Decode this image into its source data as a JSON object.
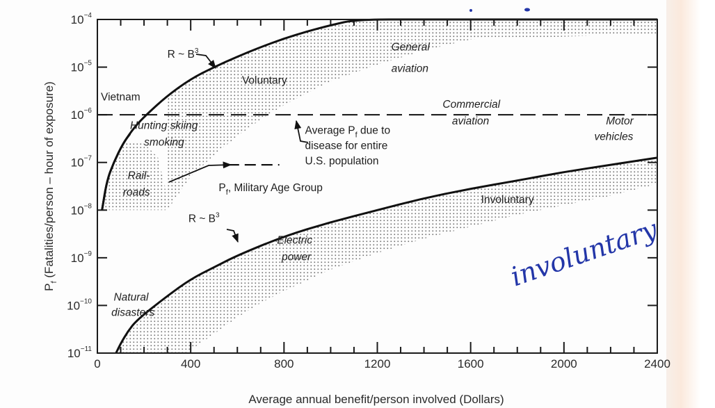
{
  "chart_data": {
    "type": "area",
    "title": "",
    "xlabel": "Average annual benefit/person involved (Dollars)",
    "ylabel": "P_f (Fatalities/person – hour of exposure)",
    "ylabel_parts": {
      "main": "P",
      "sub": "f",
      "rest": " (Fatalities/person – hour of exposure)"
    },
    "xlim": [
      0,
      2400
    ],
    "ylim_log10": [
      -11,
      -4
    ],
    "yscale": "log",
    "grid": false,
    "x_ticks": [
      {
        "value": 0,
        "label": "0"
      },
      {
        "value": 400,
        "label": "400"
      },
      {
        "value": 800,
        "label": "800"
      },
      {
        "value": 1200,
        "label": "1200"
      },
      {
        "value": 1600,
        "label": "1600"
      },
      {
        "value": 2000,
        "label": "2000"
      },
      {
        "value": 2400,
        "label": "2400"
      }
    ],
    "x_minor_step": 100,
    "y_ticks": [
      {
        "exp": -4,
        "base": "10",
        "sup": "−4"
      },
      {
        "exp": -5,
        "base": "10",
        "sup": "−5"
      },
      {
        "exp": -6,
        "base": "10",
        "sup": "−6"
      },
      {
        "exp": -7,
        "base": "10",
        "sup": "−7"
      },
      {
        "exp": -8,
        "base": "10",
        "sup": "−8"
      },
      {
        "exp": -9,
        "base": "10",
        "sup": "−9"
      },
      {
        "exp": -10,
        "base": "10",
        "sup": "−10"
      },
      {
        "exp": -11,
        "base": "10",
        "sup": "−11"
      }
    ],
    "series": [
      {
        "name": "Voluntary risk boundary (R ~ B³)",
        "style": "solid",
        "points": [
          [
            20,
            -8.0
          ],
          [
            40,
            -7.4
          ],
          [
            70,
            -7.0
          ],
          [
            110,
            -6.6
          ],
          [
            160,
            -6.25
          ],
          [
            210,
            -6.0
          ],
          [
            300,
            -5.6
          ],
          [
            400,
            -5.25
          ],
          [
            500,
            -5.0
          ],
          [
            600,
            -4.78
          ],
          [
            700,
            -4.58
          ],
          [
            800,
            -4.4
          ],
          [
            900,
            -4.25
          ],
          [
            1000,
            -4.12
          ],
          [
            1110,
            -4.0
          ],
          [
            1400,
            -3.95
          ],
          [
            1800,
            -3.93
          ],
          [
            2400,
            -3.92
          ]
        ]
      },
      {
        "name": "Voluntary band lower edge",
        "style": "shade-edge",
        "points": [
          [
            300,
            -8.0
          ],
          [
            400,
            -7.3
          ],
          [
            500,
            -6.85
          ],
          [
            600,
            -6.45
          ],
          [
            700,
            -6.1
          ],
          [
            800,
            -5.8
          ],
          [
            900,
            -5.55
          ],
          [
            1000,
            -5.3
          ],
          [
            1200,
            -4.95
          ],
          [
            1400,
            -4.65
          ],
          [
            1600,
            -4.42
          ],
          [
            1800,
            -4.25
          ],
          [
            2000,
            -4.15
          ],
          [
            2400,
            -4.05
          ]
        ]
      },
      {
        "name": "Involuntary risk boundary (R ~ B³)",
        "style": "solid",
        "points": [
          [
            80,
            -11.0
          ],
          [
            100,
            -10.8
          ],
          [
            130,
            -10.55
          ],
          [
            170,
            -10.3
          ],
          [
            300,
            -9.8
          ],
          [
            400,
            -9.45
          ],
          [
            500,
            -9.2
          ],
          [
            600,
            -8.95
          ],
          [
            800,
            -8.55
          ],
          [
            1000,
            -8.25
          ],
          [
            1200,
            -8.0
          ],
          [
            1400,
            -7.75
          ],
          [
            1600,
            -7.55
          ],
          [
            1800,
            -7.38
          ],
          [
            2000,
            -7.2
          ],
          [
            2200,
            -7.05
          ],
          [
            2400,
            -6.9
          ]
        ]
      },
      {
        "name": "Involuntary band lower edge",
        "style": "shade-edge",
        "points": [
          [
            380,
            -11.0
          ],
          [
            500,
            -10.6
          ],
          [
            600,
            -10.25
          ],
          [
            700,
            -9.95
          ],
          [
            800,
            -9.7
          ],
          [
            1000,
            -9.25
          ],
          [
            1200,
            -8.9
          ],
          [
            1400,
            -8.6
          ],
          [
            1600,
            -8.35
          ],
          [
            1800,
            -8.1
          ],
          [
            2000,
            -7.9
          ],
          [
            2200,
            -7.7
          ],
          [
            2400,
            -7.45
          ]
        ]
      },
      {
        "name": "Average P_f due to disease for entire U.S. population",
        "style": "dashed",
        "points": [
          [
            0,
            -6.0
          ],
          [
            2400,
            -6.0
          ]
        ]
      },
      {
        "name": "P_f, Military Age Group",
        "style": "dashed-short",
        "points": [
          [
            560,
            -7.05
          ],
          [
            780,
            -7.05
          ]
        ]
      }
    ],
    "left_shaded_blob": {
      "name": "Voluntary low-benefit region (Rail-roads)",
      "points": [
        [
          20,
          -8.0
        ],
        [
          300,
          -8.0
        ],
        [
          290,
          -7.5
        ],
        [
          260,
          -6.9
        ],
        [
          200,
          -6.6
        ],
        [
          110,
          -6.6
        ],
        [
          70,
          -7.0
        ],
        [
          40,
          -7.4
        ]
      ]
    },
    "annotations": [
      {
        "id": "r-b3-upper",
        "text": "R ~ B",
        "sup": "3",
        "italic": false,
        "x": 300,
        "y": -4.8,
        "arrow_to": [
          520,
          -5.0
        ]
      },
      {
        "id": "vietnam",
        "text": "Vietnam",
        "italic": false,
        "x": 15,
        "y": -5.7
      },
      {
        "id": "voluntary",
        "text": "Voluntary",
        "italic": false,
        "x": 620,
        "y": -5.35
      },
      {
        "id": "general-aviation-1",
        "text": "General",
        "italic": true,
        "x": 1260,
        "y": -4.65
      },
      {
        "id": "general-aviation-2",
        "text": "aviation",
        "italic": true,
        "x": 1260,
        "y": -5.1
      },
      {
        "id": "hunting",
        "text": "Hunting skiing",
        "italic": true,
        "x": 140,
        "y": -6.3
      },
      {
        "id": "smoking",
        "text": "smoking",
        "italic": true,
        "x": 200,
        "y": -6.65
      },
      {
        "id": "commercial-aviation-1",
        "text": "Commercial",
        "italic": true,
        "x": 1480,
        "y": -5.85
      },
      {
        "id": "commercial-aviation-2",
        "text": "aviation",
        "italic": true,
        "x": 1520,
        "y": -6.2
      },
      {
        "id": "disease-1",
        "text": "Average P",
        "sub": "f",
        "tail": " due to",
        "italic": false,
        "x": 890,
        "y": -6.4
      },
      {
        "id": "disease-2",
        "text": "disease for entire",
        "italic": false,
        "x": 890,
        "y": -6.72
      },
      {
        "id": "disease-3",
        "text": "U.S. population",
        "italic": false,
        "x": 890,
        "y": -7.04
      },
      {
        "id": "motor-vehicles-1",
        "text": "Motor",
        "italic": true,
        "x": 2180,
        "y": -6.2
      },
      {
        "id": "motor-vehicles-2",
        "text": "vehicles",
        "italic": true,
        "x": 2130,
        "y": -6.53
      },
      {
        "id": "railroads-1",
        "text": "Rail-",
        "italic": true,
        "x": 130,
        "y": -7.35
      },
      {
        "id": "railroads-2",
        "text": "roads",
        "italic": true,
        "x": 110,
        "y": -7.7
      },
      {
        "id": "military",
        "text": "P",
        "sub": "f",
        "tail": ", Military Age Group",
        "italic": false,
        "x": 520,
        "y": -7.6
      },
      {
        "id": "involuntary",
        "text": "Involuntary",
        "italic": false,
        "x": 1645,
        "y": -7.85
      },
      {
        "id": "r-b3-lower",
        "text": "R ~ B",
        "sup": "3",
        "italic": false,
        "x": 390,
        "y": -8.25
      },
      {
        "id": "electric-power-1",
        "text": "Electric",
        "italic": true,
        "x": 770,
        "y": -8.7
      },
      {
        "id": "electric-power-2",
        "text": "power",
        "italic": true,
        "x": 790,
        "y": -9.05
      },
      {
        "id": "natural-disasters-1",
        "text": "Natural",
        "italic": true,
        "x": 70,
        "y": -9.9
      },
      {
        "id": "natural-disasters-2",
        "text": "disasters",
        "italic": true,
        "x": 60,
        "y": -10.22
      }
    ],
    "handwritten_note": {
      "text": "involuntary",
      "color": "#2336a8"
    }
  }
}
